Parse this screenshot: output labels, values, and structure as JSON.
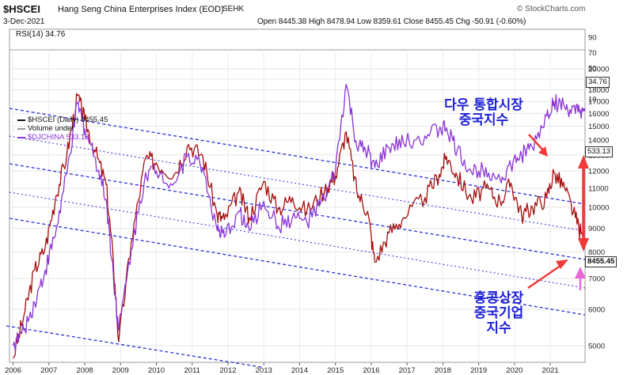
{
  "header": {
    "symbol": "$HSCEI",
    "name": "Hang Seng China Enterprises Index (EOD)",
    "exchange": "SEHK",
    "date": "3-Dec-2021",
    "ohlc": "Open 8445.38  High 8478.94  Low 8359.61  Close 8455.45  Chg -50.91 (-0.60%)",
    "source": "© StockCharts.com"
  },
  "rsi": {
    "label": "RSI(14) 34.76",
    "value_badge": "34.76",
    "ticks": [
      "90",
      "70",
      "50",
      "30",
      "10"
    ]
  },
  "legend": {
    "hscei": "$HSCEI (Daily) 8455.45",
    "volume": "Volume undef",
    "djchina": "$DJCHINA 533.13"
  },
  "badges": {
    "djchina": "533.13",
    "hscei": "8455.45"
  },
  "annotations": {
    "top": [
      "다우 통합시장",
      "중국지수"
    ],
    "bottom": [
      "홍콩상장",
      "중국기업",
      "지수"
    ]
  },
  "colors": {
    "hscei": "#a50d0d",
    "djchina": "#8a34d6",
    "channel": "#2a2fd6",
    "arrow": "#f03a3a",
    "pink_arrow": "#e86ad8"
  },
  "chart_data": {
    "type": "line",
    "title": "$HSCEI Hang Seng China Enterprises Index (EOD) vs $DJCHINA",
    "y_scale": "log",
    "ylim": [
      4600,
      22000
    ],
    "y_ticks": [
      5000,
      6000,
      7000,
      8000,
      9000,
      10000,
      11000,
      12000,
      13000,
      14000,
      15000,
      16000,
      17000,
      18000,
      19000,
      20000
    ],
    "x_ticks": [
      "2006",
      "2007",
      "2008",
      "2009",
      "2010",
      "2011",
      "2012",
      "2013",
      "2014",
      "2015",
      "2016",
      "2017",
      "2018",
      "2019",
      "2020",
      "2021"
    ],
    "series": [
      {
        "name": "$HSCEI (Daily)",
        "x": [
          2006.0,
          2006.3,
          2006.6,
          2006.9,
          2007.2,
          2007.5,
          2007.8,
          2008.0,
          2008.3,
          2008.6,
          2008.8,
          2008.95,
          2009.3,
          2009.7,
          2010.0,
          2010.5,
          2010.9,
          2011.3,
          2011.7,
          2011.9,
          2012.3,
          2012.6,
          2013.0,
          2013.4,
          2013.8,
          2014.2,
          2014.7,
          2015.0,
          2015.3,
          2015.6,
          2015.9,
          2016.1,
          2016.5,
          2016.9,
          2017.5,
          2017.9,
          2018.1,
          2018.4,
          2018.8,
          2019.2,
          2019.6,
          2019.9,
          2020.2,
          2020.5,
          2020.9,
          2021.1,
          2021.4,
          2021.7,
          2021.93
        ],
        "values": [
          4700,
          5800,
          7300,
          8200,
          10600,
          13000,
          17500,
          15500,
          13200,
          11200,
          7600,
          5100,
          8400,
          12800,
          12500,
          11800,
          13700,
          12900,
          9600,
          9400,
          10800,
          9500,
          11400,
          9900,
          10500,
          9800,
          10900,
          11700,
          14600,
          10800,
          9800,
          7600,
          8800,
          9500,
          10500,
          11800,
          12900,
          11700,
          10400,
          11000,
          10300,
          11300,
          9600,
          10000,
          10500,
          11900,
          11000,
          9500,
          8455.45
        ]
      },
      {
        "name": "$DJCHINA",
        "x": [
          2006.0,
          2006.3,
          2006.6,
          2006.9,
          2007.2,
          2007.5,
          2007.8,
          2008.0,
          2008.3,
          2008.6,
          2008.8,
          2008.95,
          2009.3,
          2009.7,
          2010.0,
          2010.5,
          2010.9,
          2011.3,
          2011.7,
          2011.9,
          2012.3,
          2012.6,
          2013.0,
          2013.4,
          2013.8,
          2014.2,
          2014.7,
          2015.0,
          2015.3,
          2015.6,
          2015.9,
          2016.1,
          2016.5,
          2016.9,
          2017.5,
          2017.9,
          2018.1,
          2018.4,
          2018.8,
          2019.2,
          2019.6,
          2019.9,
          2020.2,
          2020.5,
          2020.9,
          2021.1,
          2021.4,
          2021.7,
          2021.93
        ],
        "values": [
          5000,
          5400,
          6200,
          7300,
          8900,
          11800,
          16800,
          14800,
          12800,
          10400,
          7100,
          5400,
          8100,
          11900,
          12000,
          11300,
          13100,
          12200,
          8900,
          8600,
          9800,
          8900,
          10300,
          9100,
          9500,
          9300,
          10400,
          12000,
          18500,
          13500,
          13200,
          12200,
          13500,
          13800,
          14300,
          14800,
          14900,
          13300,
          11900,
          12200,
          11500,
          12300,
          13000,
          13500,
          15800,
          17000,
          16500,
          16000,
          16300
        ]
      }
    ]
  }
}
